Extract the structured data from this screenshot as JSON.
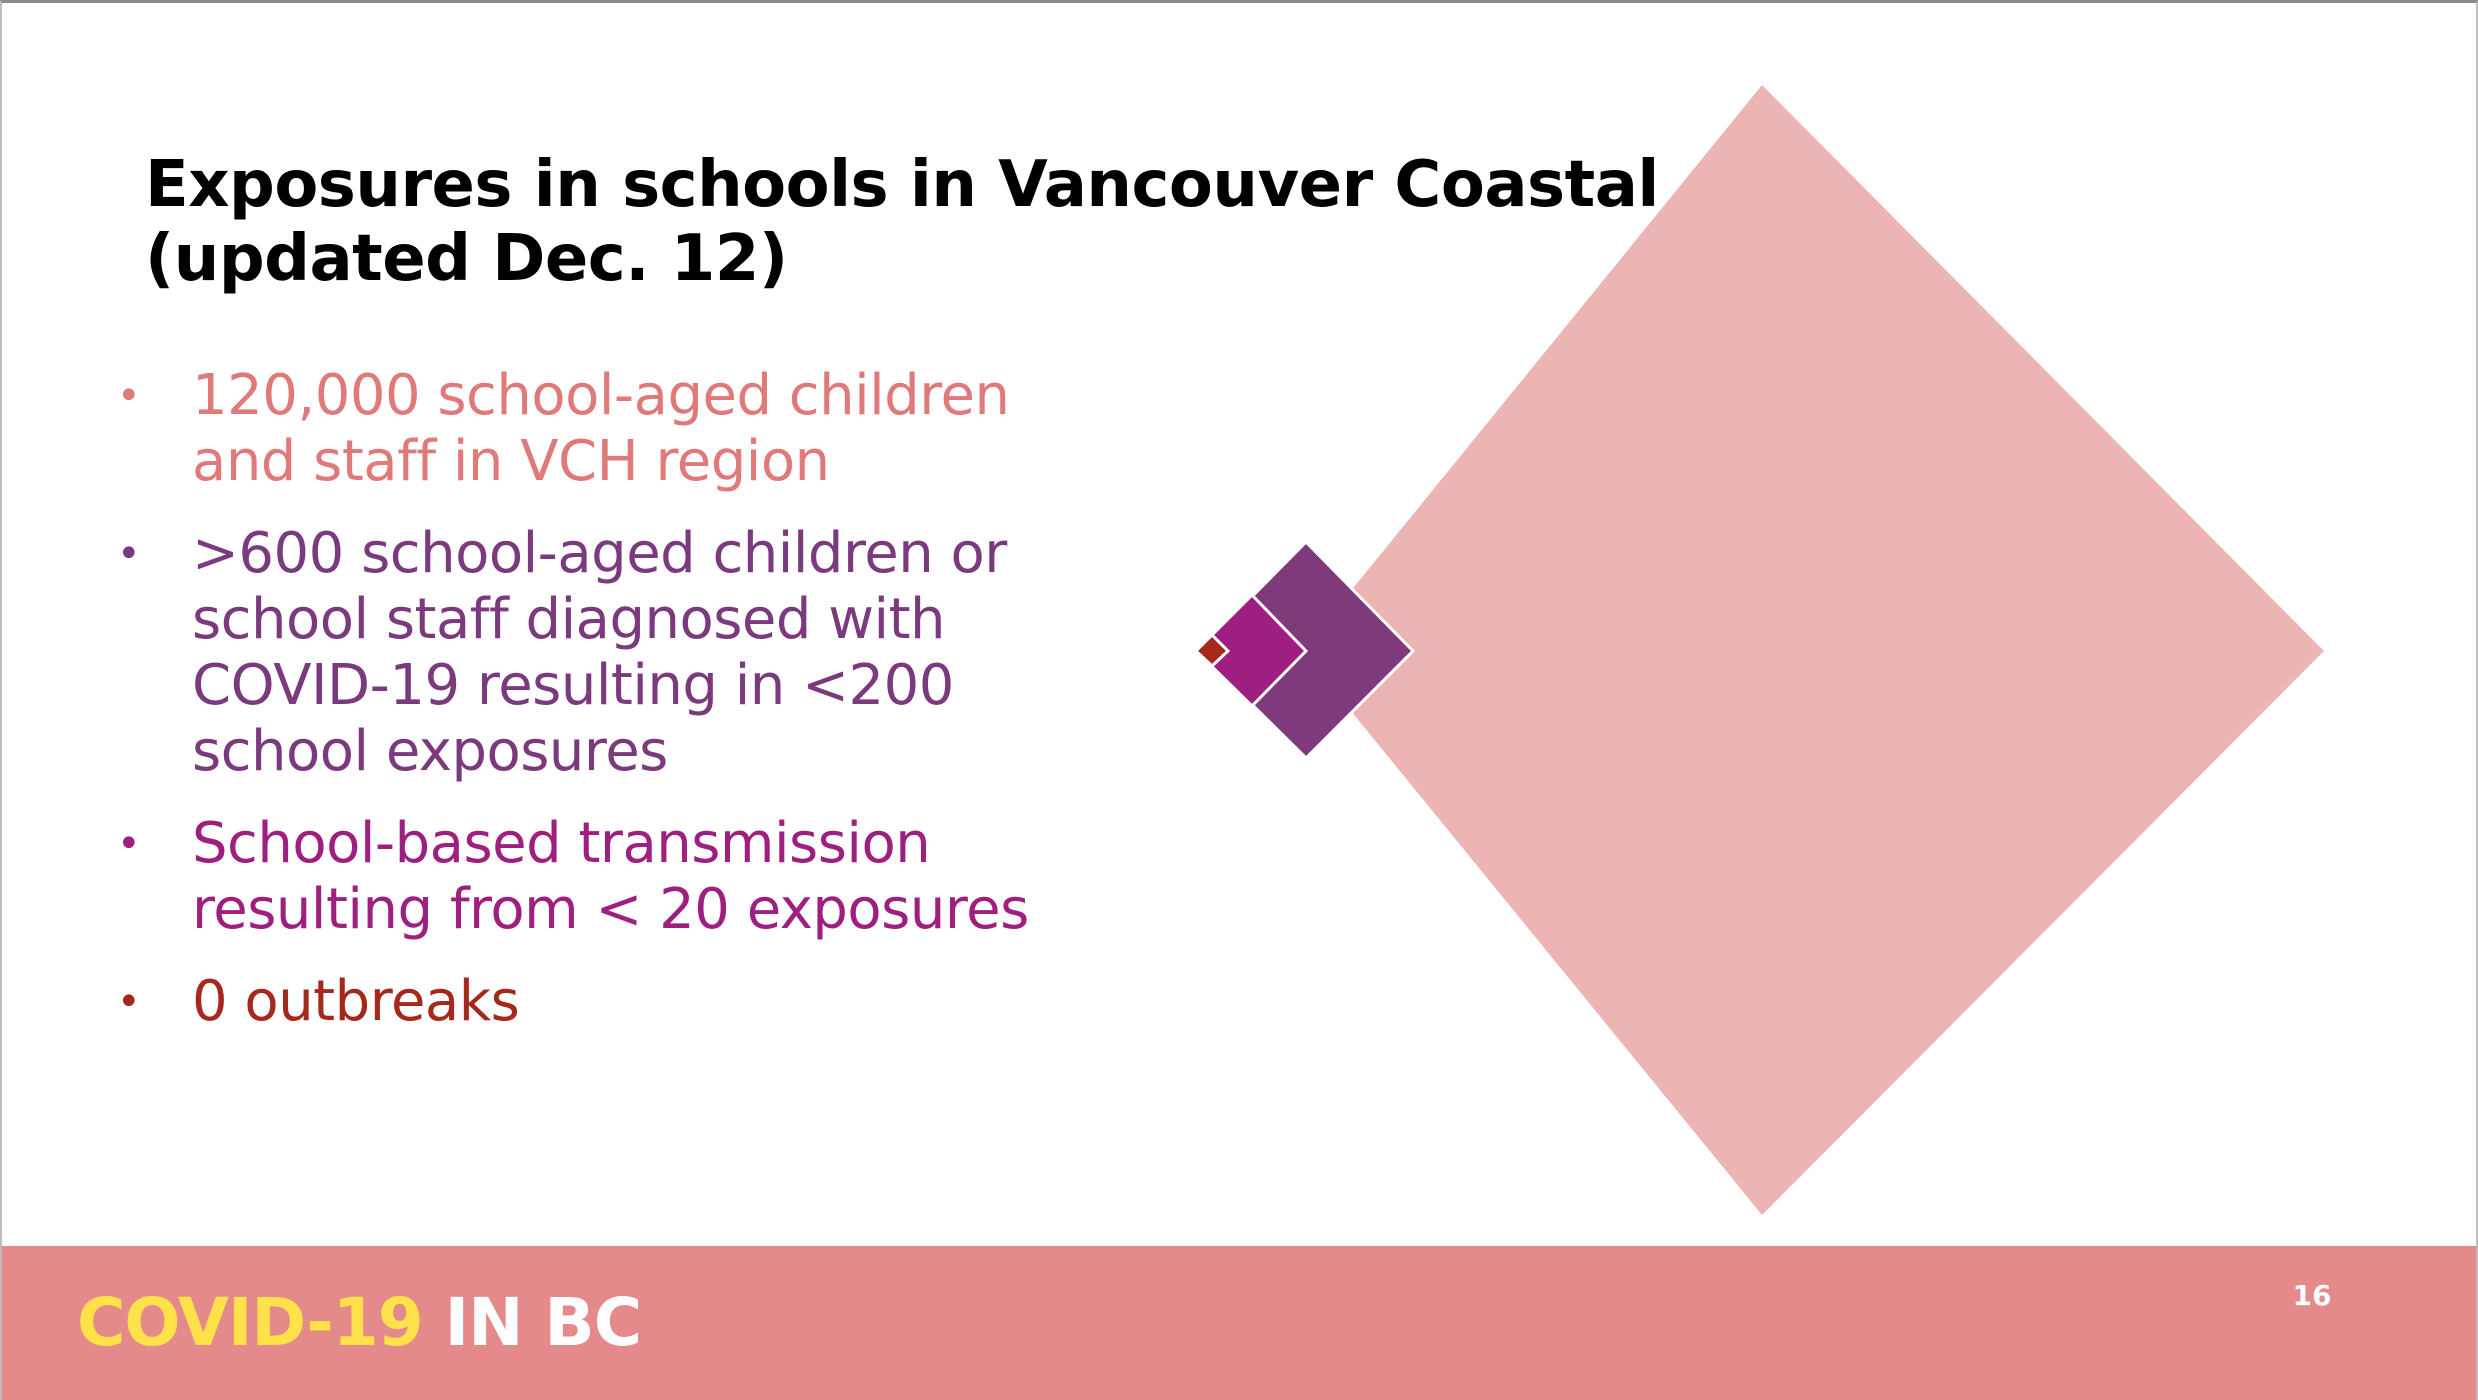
{
  "title": {
    "line1": "Exposures in schools in Vancouver Coastal",
    "line2": "(updated Dec. 12)"
  },
  "bullets": [
    {
      "lines": [
        "120,000 school-aged children",
        "and staff in VCH region"
      ],
      "color": "#e07a7a"
    },
    {
      "lines": [
        ">600 school-aged children or",
        "school staff diagnosed with",
        "COVID-19 resulting in <200",
        "school exposures"
      ],
      "color": "#7b3a7d"
    },
    {
      "lines": [
        "School-based transmission",
        "resulting from < 20 exposures"
      ],
      "color": "#9e1f7f"
    },
    {
      "lines": [
        "0 outbreaks"
      ],
      "color": "#a5281c"
    }
  ],
  "diamonds": {
    "large_color": "#edb4b4",
    "medium_color": "#7f3a7b",
    "small_color": "#9e1f7f",
    "tiny_color": "#a5281c"
  },
  "footer": {
    "brand_part1": "COVID-19",
    "brand_part2": "IN BC",
    "brand_color1": "#ffe24a",
    "brand_color2": "#ffffff",
    "background": "#e58a8a",
    "page_number": "16"
  }
}
